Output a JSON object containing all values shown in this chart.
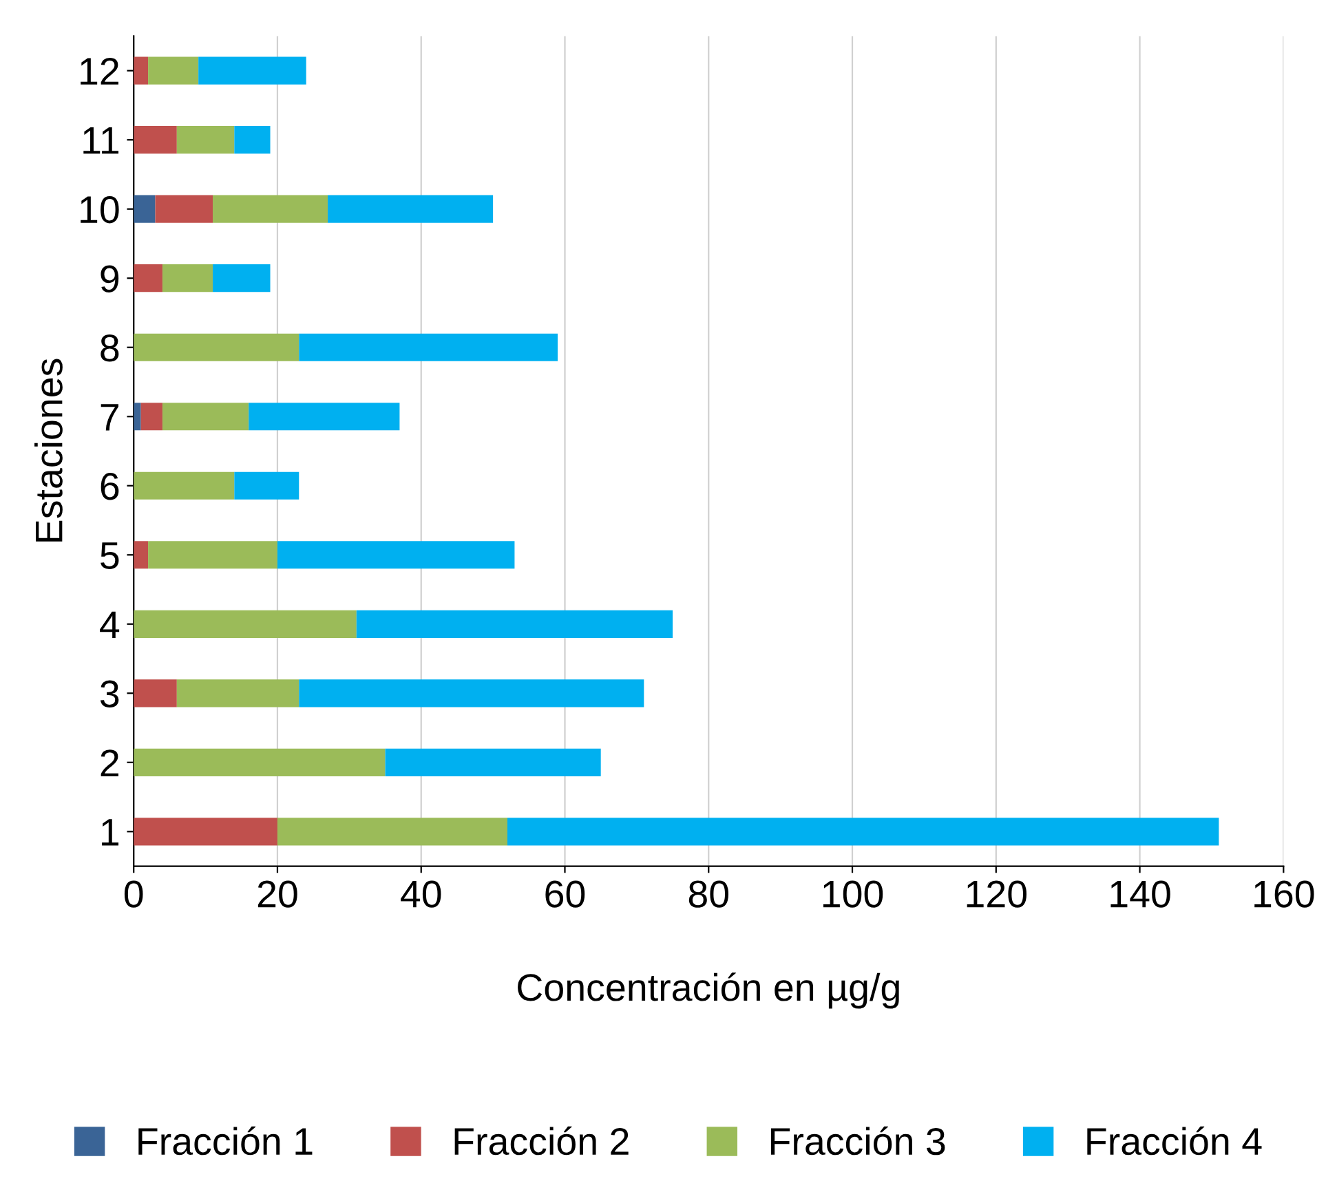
{
  "chart_data": {
    "type": "bar",
    "orientation": "horizontal",
    "stacked": true,
    "xlabel": "Concentración en µg/g",
    "ylabel": "Estaciones",
    "categories": [
      "12",
      "11",
      "10",
      "9",
      "8",
      "7",
      "6",
      "5",
      "4",
      "3",
      "2",
      "1"
    ],
    "series": [
      {
        "name": "Fracción 1",
        "color": "#3a6496",
        "values": [
          0,
          0,
          3,
          0,
          0,
          1,
          0,
          0,
          0,
          0,
          0,
          0
        ]
      },
      {
        "name": "Fracción 2",
        "color": "#c0504d",
        "values": [
          2,
          6,
          8,
          4,
          0,
          3,
          0,
          2,
          0,
          6,
          0,
          20
        ]
      },
      {
        "name": "Fracción 3",
        "color": "#9bbb59",
        "values": [
          7,
          8,
          16,
          7,
          23,
          12,
          14,
          18,
          31,
          17,
          35,
          32
        ]
      },
      {
        "name": "Fracción 4",
        "color": "#00b0f0",
        "values": [
          15,
          5,
          23,
          8,
          36,
          21,
          9,
          33,
          44,
          48,
          30,
          99
        ]
      }
    ],
    "xlim": [
      0,
      160
    ],
    "xticks": [
      0,
      20,
      40,
      60,
      80,
      100,
      120,
      140,
      160
    ],
    "grid": "x",
    "legend": "bottom"
  }
}
